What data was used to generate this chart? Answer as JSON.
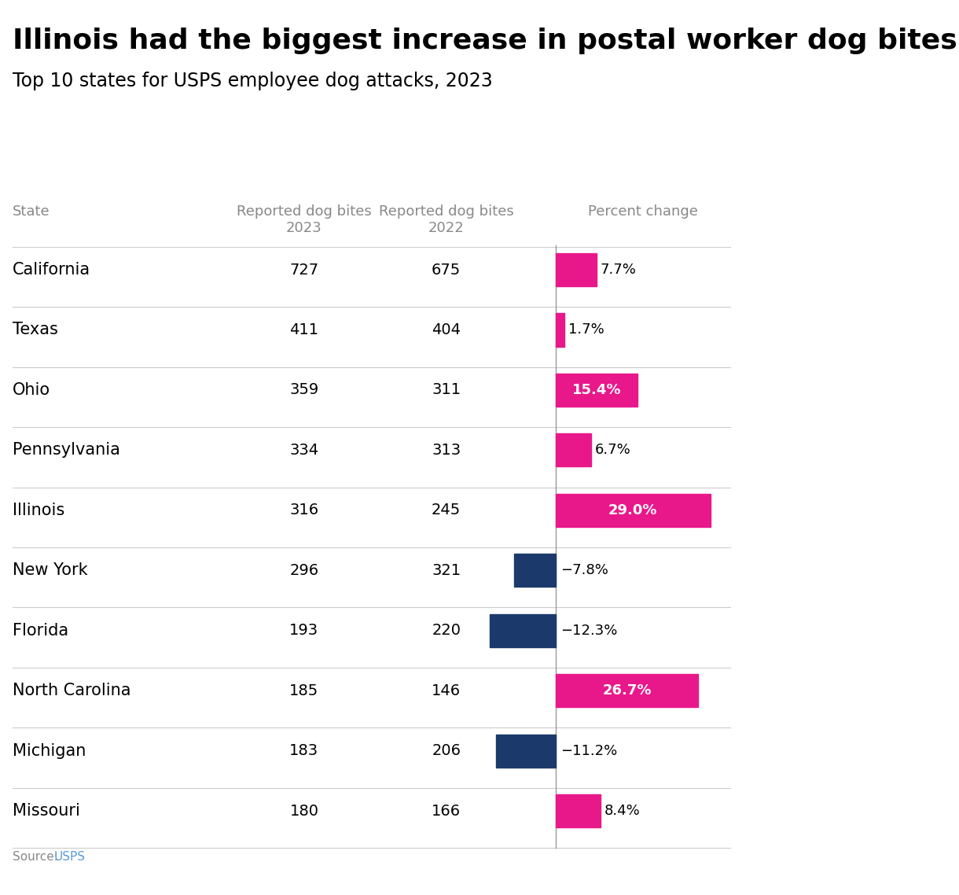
{
  "title": "Illinois had the biggest increase in postal worker dog bites.",
  "subtitle": "Top 10 states for USPS employee dog attacks, 2023",
  "source_text": "Source: ",
  "source_link": "USPS",
  "col_state": "State",
  "col_2023": "Reported dog bites\n2023",
  "col_2022": "Reported dog bites\n2022",
  "col_pct": "Percent change",
  "states": [
    "California",
    "Texas",
    "Ohio",
    "Pennsylvania",
    "Illinois",
    "New York",
    "Florida",
    "North Carolina",
    "Michigan",
    "Missouri"
  ],
  "bites_2023": [
    727,
    411,
    359,
    334,
    316,
    296,
    193,
    185,
    183,
    180
  ],
  "bites_2022": [
    675,
    404,
    311,
    313,
    245,
    321,
    220,
    146,
    206,
    166
  ],
  "pct_change": [
    7.7,
    1.7,
    15.4,
    6.7,
    29.0,
    -7.8,
    -12.3,
    26.7,
    -11.2,
    8.4
  ],
  "pct_labels": [
    "7.7%",
    "1.7%",
    "15.4%",
    "6.7%",
    "29.0%",
    "−7.8%",
    "−12.3%",
    "26.7%",
    "−11.2%",
    "8.4%"
  ],
  "positive_color": "#E8188A",
  "negative_color": "#1B3A6B",
  "background_color": "#FFFFFF",
  "title_fontsize": 26,
  "subtitle_fontsize": 17,
  "header_fontsize": 13,
  "data_fontsize": 14,
  "state_fontsize": 15,
  "text_color": "#000000",
  "header_color": "#888888",
  "source_color": "#888888",
  "source_link_color": "#5B9BD5"
}
